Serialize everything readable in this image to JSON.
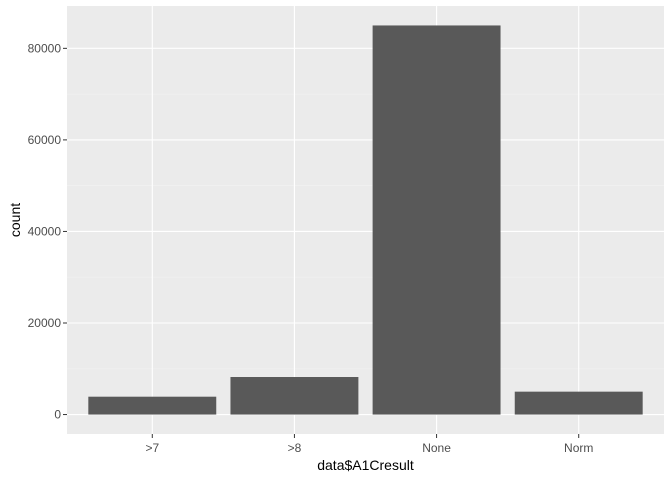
{
  "chart_data": {
    "type": "bar",
    "categories": [
      ">7",
      ">8",
      "None",
      "Norm"
    ],
    "values": [
      3900,
      8200,
      85000,
      5000
    ],
    "xlabel": "data$A1Cresult",
    "ylabel": "count",
    "ylim": [
      -4250,
      89250
    ],
    "yticks": [
      0,
      20000,
      40000,
      60000,
      80000
    ],
    "ytick_labels": [
      "0",
      "20000",
      "40000",
      "60000",
      "80000"
    ],
    "grid": true,
    "legend": "none"
  },
  "colors": {
    "panel_background": "#EBEBEB",
    "grid_major": "#FFFFFF",
    "grid_minor": "#F2F2F2",
    "bar_fill": "#595959",
    "tick_mark": "#333333",
    "tick_label": "#4D4D4D",
    "axis_title": "#000000"
  }
}
